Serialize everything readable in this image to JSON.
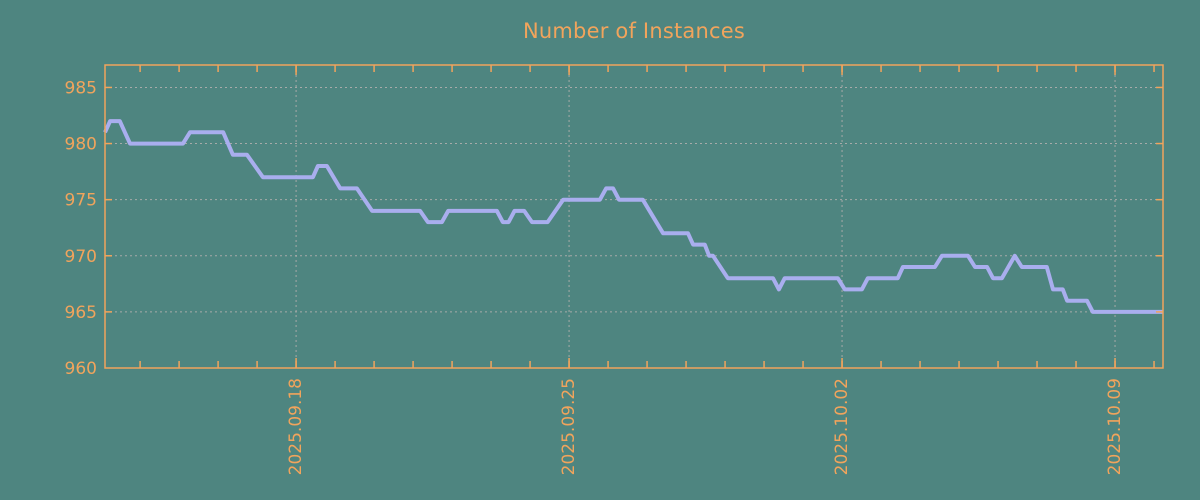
{
  "colors": {
    "background": "#4e8580",
    "axis": "#f1a45c",
    "line": "#a9aeee",
    "grid": "#a6aaa8"
  },
  "chart_data": {
    "type": "line",
    "title": "Number of Instances",
    "xlabel": "",
    "ylabel": "",
    "x_unit": "days from start of window (window spans ~2025.09.13 to ~2025.10.10)",
    "xlim_days": [
      0,
      27.13
    ],
    "ylim": [
      960,
      987
    ],
    "grid": true,
    "legend": null,
    "y_ticks": [
      {
        "value": 960,
        "label": "960"
      },
      {
        "value": 965,
        "label": "965"
      },
      {
        "value": 970,
        "label": "970"
      },
      {
        "value": 975,
        "label": "975"
      },
      {
        "value": 980,
        "label": "980"
      },
      {
        "value": 985,
        "label": "985"
      }
    ],
    "x_ticks_major": [
      {
        "day": 4.9,
        "label": "2025.09.18"
      },
      {
        "day": 11.9,
        "label": "2025.09.25"
      },
      {
        "day": 18.9,
        "label": "2025.10.02"
      },
      {
        "day": 25.9,
        "label": "2025.10.09"
      }
    ],
    "x_ticks_minor": {
      "start_day": 0.9,
      "step_days": 1,
      "count": 27
    },
    "series": [
      {
        "name": "instances",
        "color": "#a9aeee",
        "points": [
          [
            0,
            981
          ],
          [
            0.13,
            982
          ],
          [
            0.38,
            982
          ],
          [
            0.64,
            980
          ],
          [
            2.0,
            980
          ],
          [
            2.18,
            981
          ],
          [
            3.03,
            981
          ],
          [
            3.28,
            979
          ],
          [
            3.64,
            979
          ],
          [
            4.05,
            977
          ],
          [
            5.33,
            977
          ],
          [
            5.46,
            978
          ],
          [
            5.69,
            978
          ],
          [
            6.03,
            976
          ],
          [
            6.46,
            976
          ],
          [
            6.85,
            974
          ],
          [
            8.08,
            974
          ],
          [
            8.28,
            973
          ],
          [
            8.64,
            973
          ],
          [
            8.8,
            974
          ],
          [
            10.05,
            974
          ],
          [
            10.2,
            973
          ],
          [
            10.35,
            973
          ],
          [
            10.5,
            974
          ],
          [
            10.75,
            974
          ],
          [
            10.95,
            973
          ],
          [
            11.35,
            973
          ],
          [
            11.75,
            975
          ],
          [
            12.69,
            975
          ],
          [
            12.85,
            976
          ],
          [
            13.03,
            976
          ],
          [
            13.18,
            975
          ],
          [
            13.79,
            975
          ],
          [
            14.31,
            972
          ],
          [
            14.95,
            972
          ],
          [
            15.08,
            971
          ],
          [
            15.38,
            971
          ],
          [
            15.49,
            970
          ],
          [
            15.59,
            970
          ],
          [
            15.97,
            968
          ],
          [
            17.13,
            968
          ],
          [
            17.28,
            967
          ],
          [
            17.43,
            968
          ],
          [
            18.79,
            968
          ],
          [
            18.97,
            967
          ],
          [
            19.41,
            967
          ],
          [
            19.56,
            968
          ],
          [
            20.33,
            968
          ],
          [
            20.46,
            969
          ],
          [
            21.28,
            969
          ],
          [
            21.46,
            970
          ],
          [
            22.13,
            970
          ],
          [
            22.31,
            969
          ],
          [
            22.62,
            969
          ],
          [
            22.77,
            968
          ],
          [
            23.0,
            968
          ],
          [
            23.33,
            970
          ],
          [
            23.51,
            969
          ],
          [
            24.15,
            969
          ],
          [
            24.31,
            967
          ],
          [
            24.56,
            967
          ],
          [
            24.67,
            966
          ],
          [
            25.18,
            966
          ],
          [
            25.33,
            965
          ],
          [
            27.13,
            965
          ]
        ]
      }
    ]
  }
}
